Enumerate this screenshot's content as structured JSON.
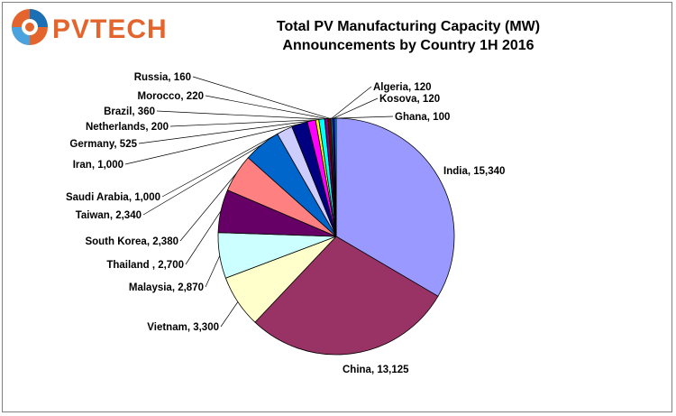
{
  "logo": {
    "text": "PVTECH"
  },
  "chart_data": {
    "type": "pie",
    "title": "Total PV Manufacturing Capacity (MW)",
    "subtitle": "Announcements by Country 1H 2016",
    "slices": [
      {
        "label": "India",
        "display": "India, 15,340",
        "value": 15340,
        "color": "#9999ff"
      },
      {
        "label": "China",
        "display": "China, 13,125",
        "value": 13125,
        "color": "#993366"
      },
      {
        "label": "Vietnam",
        "display": "Vietnam, 3,300",
        "value": 3300,
        "color": "#ffffcc"
      },
      {
        "label": "Malaysia",
        "display": "Malaysia, 2,870",
        "value": 2870,
        "color": "#ccffff"
      },
      {
        "label": "Thailand",
        "display": "Thailand , 2,700",
        "value": 2700,
        "color": "#660066"
      },
      {
        "label": "South Korea",
        "display": "South Korea, 2,380",
        "value": 2380,
        "color": "#ff8080"
      },
      {
        "label": "Taiwan",
        "display": "Taiwan, 2,340",
        "value": 2340,
        "color": "#0066cc"
      },
      {
        "label": "Saudi Arabia",
        "display": "Saudi Arabia, 1,000",
        "value": 1000,
        "color": "#ccccff"
      },
      {
        "label": "Iran",
        "display": "Iran, 1,000",
        "value": 1000,
        "color": "#000080"
      },
      {
        "label": "Germany",
        "display": "Germany, 525",
        "value": 525,
        "color": "#ff00ff"
      },
      {
        "label": "Netherlands",
        "display": "Netherlands, 200",
        "value": 200,
        "color": "#ffff00"
      },
      {
        "label": "Brazil",
        "display": "Brazil, 360",
        "value": 360,
        "color": "#00ffff"
      },
      {
        "label": "Morocco",
        "display": "Morocco, 220",
        "value": 220,
        "color": "#800080"
      },
      {
        "label": "Russia",
        "display": "Russia, 160",
        "value": 160,
        "color": "#800000"
      },
      {
        "label": "Algeria",
        "display": "Algeria, 120",
        "value": 120,
        "color": "#008080"
      },
      {
        "label": "Kosova",
        "display": "Kosova, 120",
        "value": 120,
        "color": "#0000ff"
      },
      {
        "label": "Ghana",
        "display": "Ghana, 100",
        "value": 100,
        "color": "#00ccff"
      }
    ]
  }
}
